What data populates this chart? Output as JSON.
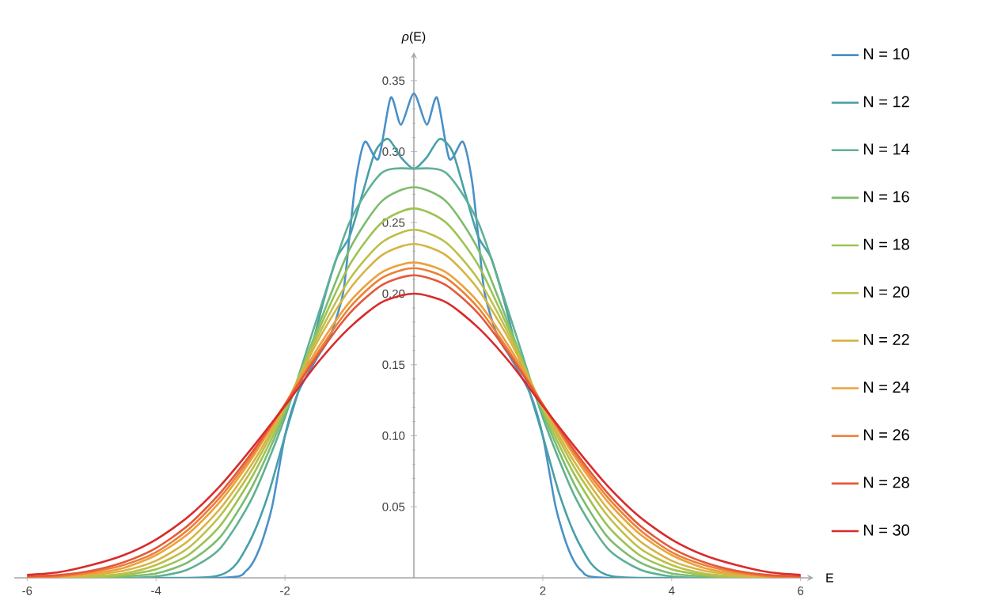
{
  "chart_data": {
    "type": "line",
    "xlabel": "E",
    "ylabel": "*ρ*(E)",
    "x": [
      -6,
      -5.5,
      -5,
      -4.5,
      -4,
      -3.5,
      -3,
      -2.5,
      -2,
      -1.5,
      -1,
      -0.5,
      0,
      0.5,
      1,
      1.5,
      2,
      2.5,
      3,
      3.5,
      4,
      4.5,
      5,
      5.5,
      6
    ],
    "xlim": [
      -6.2,
      6.2
    ],
    "ylim": [
      0,
      0.37
    ],
    "xticks": [
      {
        "value": -6,
        "label": "-6"
      },
      {
        "value": -4,
        "label": "-4"
      },
      {
        "value": -2,
        "label": "-2"
      },
      {
        "value": 2,
        "label": "2"
      },
      {
        "value": 4,
        "label": "4"
      },
      {
        "value": 6,
        "label": "6"
      }
    ],
    "yticks": [
      {
        "value": 0.05,
        "label": "0.05"
      },
      {
        "value": 0.1,
        "label": "0.10"
      },
      {
        "value": 0.15,
        "label": "0.15"
      },
      {
        "value": 0.2,
        "label": "0.20"
      },
      {
        "value": 0.25,
        "label": "0.25"
      },
      {
        "value": 0.3,
        "label": "0.30"
      },
      {
        "value": 0.35,
        "label": "0.35"
      }
    ],
    "grid": false,
    "legend": "right",
    "marker": "none",
    "line_style": "solid",
    "series": [
      {
        "name": "N = 10",
        "color": "#4a90c8",
        "x": [
          -6,
          -3,
          -2.6,
          -2.4,
          -2.2,
          -2,
          -1.8,
          -1.5,
          -1.3,
          -1.1,
          -1,
          -0.9,
          -0.76,
          -0.55,
          -0.36,
          -0.2,
          0,
          0.2,
          0.36,
          0.55,
          0.76,
          0.9,
          1,
          1.1,
          1.3,
          1.5,
          1.8,
          2,
          2.2,
          2.4,
          2.6,
          3,
          6
        ],
        "values": [
          0,
          0,
          0.005,
          0.02,
          0.05,
          0.1,
          0.13,
          0.155,
          0.17,
          0.2,
          0.24,
          0.28,
          0.307,
          0.295,
          0.338,
          0.319,
          0.341,
          0.319,
          0.338,
          0.295,
          0.307,
          0.28,
          0.24,
          0.2,
          0.17,
          0.155,
          0.13,
          0.1,
          0.05,
          0.02,
          0.005,
          0,
          0
        ]
      },
      {
        "name": "N = 12",
        "color": "#48a0a8",
        "x": [
          -6,
          -3.5,
          -3,
          -2.75,
          -2.5,
          -2.25,
          -2,
          -1.8,
          -1.6,
          -1.4,
          -1.2,
          -1,
          -0.8,
          -0.6,
          -0.4,
          -0.2,
          0,
          0.2,
          0.4,
          0.6,
          0.8,
          1,
          1.2,
          1.4,
          1.6,
          1.8,
          2,
          2.25,
          2.5,
          2.75,
          3,
          3.5,
          6
        ],
        "values": [
          0,
          0,
          0.002,
          0.01,
          0.03,
          0.06,
          0.1,
          0.13,
          0.16,
          0.195,
          0.225,
          0.24,
          0.27,
          0.3,
          0.309,
          0.296,
          0.288,
          0.296,
          0.309,
          0.3,
          0.27,
          0.24,
          0.225,
          0.195,
          0.16,
          0.13,
          0.1,
          0.06,
          0.03,
          0.01,
          0.002,
          0,
          0
        ]
      },
      {
        "name": "N = 14",
        "color": "#5fb094",
        "values": [
          0,
          0,
          0,
          0,
          0.001,
          0.006,
          0.021,
          0.057,
          0.113,
          0.183,
          0.25,
          0.285,
          0.288,
          0.285,
          0.25,
          0.183,
          0.113,
          0.057,
          0.021,
          0.006,
          0.001,
          0,
          0,
          0,
          0
        ]
      },
      {
        "name": "N = 16",
        "color": "#7cbc6e",
        "values": [
          0,
          0,
          0,
          0.001,
          0.003,
          0.011,
          0.029,
          0.065,
          0.116,
          0.175,
          0.231,
          0.265,
          0.275,
          0.265,
          0.231,
          0.175,
          0.116,
          0.065,
          0.029,
          0.011,
          0.003,
          0.001,
          0,
          0,
          0
        ]
      },
      {
        "name": "N = 18",
        "color": "#9ec352",
        "values": [
          0,
          0,
          0,
          0.002,
          0.006,
          0.016,
          0.037,
          0.072,
          0.118,
          0.172,
          0.22,
          0.25,
          0.26,
          0.25,
          0.22,
          0.172,
          0.118,
          0.072,
          0.037,
          0.016,
          0.006,
          0.002,
          0,
          0,
          0
        ]
      },
      {
        "name": "N = 20",
        "color": "#bcc04a",
        "values": [
          0,
          0,
          0.001,
          0.003,
          0.009,
          0.021,
          0.044,
          0.077,
          0.12,
          0.169,
          0.21,
          0.236,
          0.245,
          0.236,
          0.21,
          0.169,
          0.12,
          0.077,
          0.044,
          0.021,
          0.009,
          0.003,
          0.001,
          0,
          0
        ]
      },
      {
        "name": "N = 22",
        "color": "#d6b444",
        "values": [
          0,
          0,
          0.002,
          0.005,
          0.012,
          0.026,
          0.049,
          0.081,
          0.121,
          0.166,
          0.203,
          0.227,
          0.235,
          0.227,
          0.203,
          0.166,
          0.121,
          0.081,
          0.049,
          0.026,
          0.012,
          0.005,
          0.002,
          0,
          0
        ]
      },
      {
        "name": "N = 24",
        "color": "#eba23c",
        "values": [
          0,
          0.001,
          0.003,
          0.007,
          0.016,
          0.031,
          0.054,
          0.085,
          0.122,
          0.161,
          0.194,
          0.215,
          0.222,
          0.215,
          0.194,
          0.161,
          0.122,
          0.085,
          0.054,
          0.031,
          0.016,
          0.007,
          0.003,
          0.001,
          0
        ]
      },
      {
        "name": "N = 26",
        "color": "#ec8038",
        "values": [
          0,
          0.001,
          0.004,
          0.009,
          0.018,
          0.034,
          0.057,
          0.087,
          0.122,
          0.158,
          0.19,
          0.211,
          0.218,
          0.211,
          0.19,
          0.158,
          0.122,
          0.087,
          0.057,
          0.034,
          0.018,
          0.009,
          0.004,
          0.001,
          0
        ]
      },
      {
        "name": "N = 28",
        "color": "#e5583a",
        "values": [
          0.001,
          0.002,
          0.005,
          0.011,
          0.021,
          0.037,
          0.06,
          0.089,
          0.122,
          0.156,
          0.186,
          0.206,
          0.213,
          0.206,
          0.186,
          0.156,
          0.122,
          0.089,
          0.06,
          0.037,
          0.021,
          0.011,
          0.005,
          0.002,
          0.001
        ]
      },
      {
        "name": "N = 30",
        "color": "#d92b2b",
        "values": [
          0.002,
          0.004,
          0.009,
          0.016,
          0.027,
          0.043,
          0.065,
          0.092,
          0.121,
          0.151,
          0.176,
          0.194,
          0.2,
          0.194,
          0.176,
          0.151,
          0.121,
          0.092,
          0.065,
          0.043,
          0.027,
          0.016,
          0.009,
          0.004,
          0.002
        ]
      }
    ]
  }
}
